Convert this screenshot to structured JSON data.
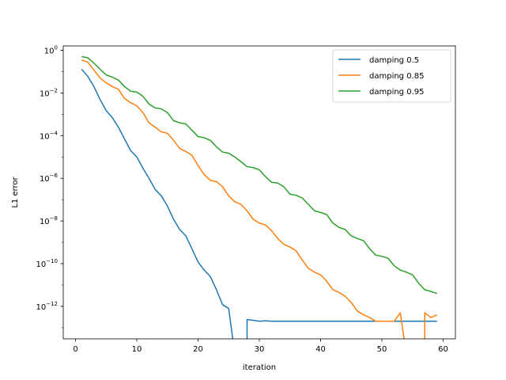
{
  "chart_data": {
    "type": "line",
    "title": "",
    "xlabel": "iteration",
    "ylabel": "L1 error",
    "yscale": "log",
    "xlim": [
      -2,
      62
    ],
    "ylim": [
      3e-14,
      1.6
    ],
    "grid": false,
    "legend_position": "top-right",
    "x_ticks": [
      0,
      10,
      20,
      30,
      40,
      50,
      60
    ],
    "y_ticks": [
      {
        "value": 1,
        "base": "10",
        "exp": "0"
      },
      {
        "value": 0.01,
        "base": "10",
        "exp": "−2"
      },
      {
        "value": 0.0001,
        "base": "10",
        "exp": "−4"
      },
      {
        "value": 1e-06,
        "base": "10",
        "exp": "−6"
      },
      {
        "value": 1e-08,
        "base": "10",
        "exp": "−8"
      },
      {
        "value": 1e-10,
        "base": "10",
        "exp": "−10"
      },
      {
        "value": 1e-12,
        "base": "10",
        "exp": "−12"
      }
    ],
    "series": [
      {
        "name": "damping 0.5",
        "color": "#1f77b4",
        "x": [
          1,
          2,
          3,
          4,
          5,
          6,
          7,
          8,
          9,
          10,
          11,
          12,
          13,
          14,
          15,
          16,
          17,
          18,
          19,
          20,
          21,
          22,
          23,
          24,
          25,
          26,
          27,
          28,
          29,
          30,
          31,
          32,
          33,
          34,
          35,
          36,
          37,
          38,
          39,
          40,
          41,
          42,
          43,
          44,
          45,
          46,
          47,
          48,
          49,
          50,
          51,
          52,
          53,
          54,
          55,
          56,
          57,
          58,
          59
        ],
        "y": [
          0.13,
          0.06,
          0.02,
          0.005,
          0.0015,
          0.0007,
          0.00025,
          7e-05,
          2e-05,
          1e-05,
          3e-06,
          1e-06,
          3e-07,
          1.5e-07,
          5e-08,
          1.2e-08,
          4e-09,
          2e-09,
          5e-10,
          1.2e-10,
          5e-11,
          2.5e-11,
          6e-12,
          1.2e-12,
          8e-13,
          null,
          null,
          2.4e-13,
          2.2e-13,
          2e-13,
          2.1e-13,
          2e-13,
          2e-13,
          2e-13,
          2e-13,
          2e-13,
          2e-13,
          2e-13,
          2e-13,
          2e-13,
          2e-13,
          2e-13,
          2e-13,
          2e-13,
          2e-13,
          2e-13,
          2e-13,
          2e-13,
          2e-13,
          2e-13,
          2e-13,
          2e-13,
          2e-13,
          2e-13,
          2e-13,
          2e-13,
          2e-13,
          2e-13,
          2e-13
        ]
      },
      {
        "name": "damping 0.85",
        "color": "#ff7f0e",
        "x": [
          1,
          2,
          3,
          4,
          5,
          6,
          7,
          8,
          9,
          10,
          11,
          12,
          13,
          14,
          15,
          16,
          17,
          18,
          19,
          20,
          21,
          22,
          23,
          24,
          25,
          26,
          27,
          28,
          29,
          30,
          31,
          32,
          33,
          34,
          35,
          36,
          37,
          38,
          39,
          40,
          41,
          42,
          43,
          44,
          45,
          46,
          47,
          48,
          49,
          50,
          51,
          52,
          53,
          54,
          55,
          56,
          57,
          58,
          59
        ],
        "y": [
          0.35,
          0.28,
          0.12,
          0.05,
          0.03,
          0.02,
          0.015,
          0.0055,
          0.0035,
          0.0025,
          0.0012,
          0.0004,
          0.00025,
          0.00015,
          0.00013,
          6e-05,
          2.5e-05,
          1.8e-05,
          1.2e-05,
          4e-06,
          1.5e-06,
          8e-07,
          7e-07,
          4e-07,
          1.5e-07,
          8e-08,
          6e-08,
          3e-08,
          1.2e-08,
          8e-09,
          6.5e-09,
          3.5e-09,
          1.5e-09,
          8e-10,
          6e-10,
          4e-10,
          1.5e-10,
          6e-11,
          4e-11,
          3e-11,
          1.5e-11,
          6e-12,
          4.5e-12,
          3e-12,
          1.5e-12,
          6e-13,
          4e-13,
          3e-13,
          2e-13,
          2e-13,
          2e-13,
          2e-13,
          5e-13,
          null,
          null,
          null,
          5e-13,
          3e-13,
          4e-13
        ]
      },
      {
        "name": "damping 0.95",
        "color": "#2ca02c",
        "x": [
          1,
          2,
          3,
          4,
          5,
          6,
          7,
          8,
          9,
          10,
          11,
          12,
          13,
          14,
          15,
          16,
          17,
          18,
          19,
          20,
          21,
          22,
          23,
          24,
          25,
          26,
          27,
          28,
          29,
          30,
          31,
          32,
          33,
          34,
          35,
          36,
          37,
          38,
          39,
          40,
          41,
          42,
          43,
          44,
          45,
          46,
          47,
          48,
          49,
          50,
          51,
          52,
          53,
          54,
          55,
          56,
          57,
          58,
          59
        ],
        "y": [
          0.5,
          0.45,
          0.25,
          0.13,
          0.07,
          0.055,
          0.04,
          0.02,
          0.012,
          0.011,
          0.007,
          0.003,
          0.002,
          0.0018,
          0.0012,
          0.0005,
          0.0004,
          0.00035,
          0.00018,
          9e-05,
          8e-05,
          6e-05,
          3e-05,
          1.7e-05,
          1.5e-05,
          1e-05,
          6e-06,
          3.5e-06,
          3.2e-06,
          2.5e-06,
          1.2e-06,
          6.5e-07,
          6e-07,
          4e-07,
          1.8e-07,
          1.6e-07,
          1.2e-07,
          6e-08,
          3e-08,
          2.5e-08,
          2e-08,
          8e-09,
          5e-09,
          4e-09,
          2e-09,
          1.5e-09,
          1.2e-09,
          5e-10,
          2.5e-10,
          2.2e-10,
          1.8e-10,
          8e-11,
          5e-11,
          4e-11,
          3e-11,
          1.2e-11,
          6e-12,
          5e-12,
          4e-12
        ]
      }
    ]
  }
}
